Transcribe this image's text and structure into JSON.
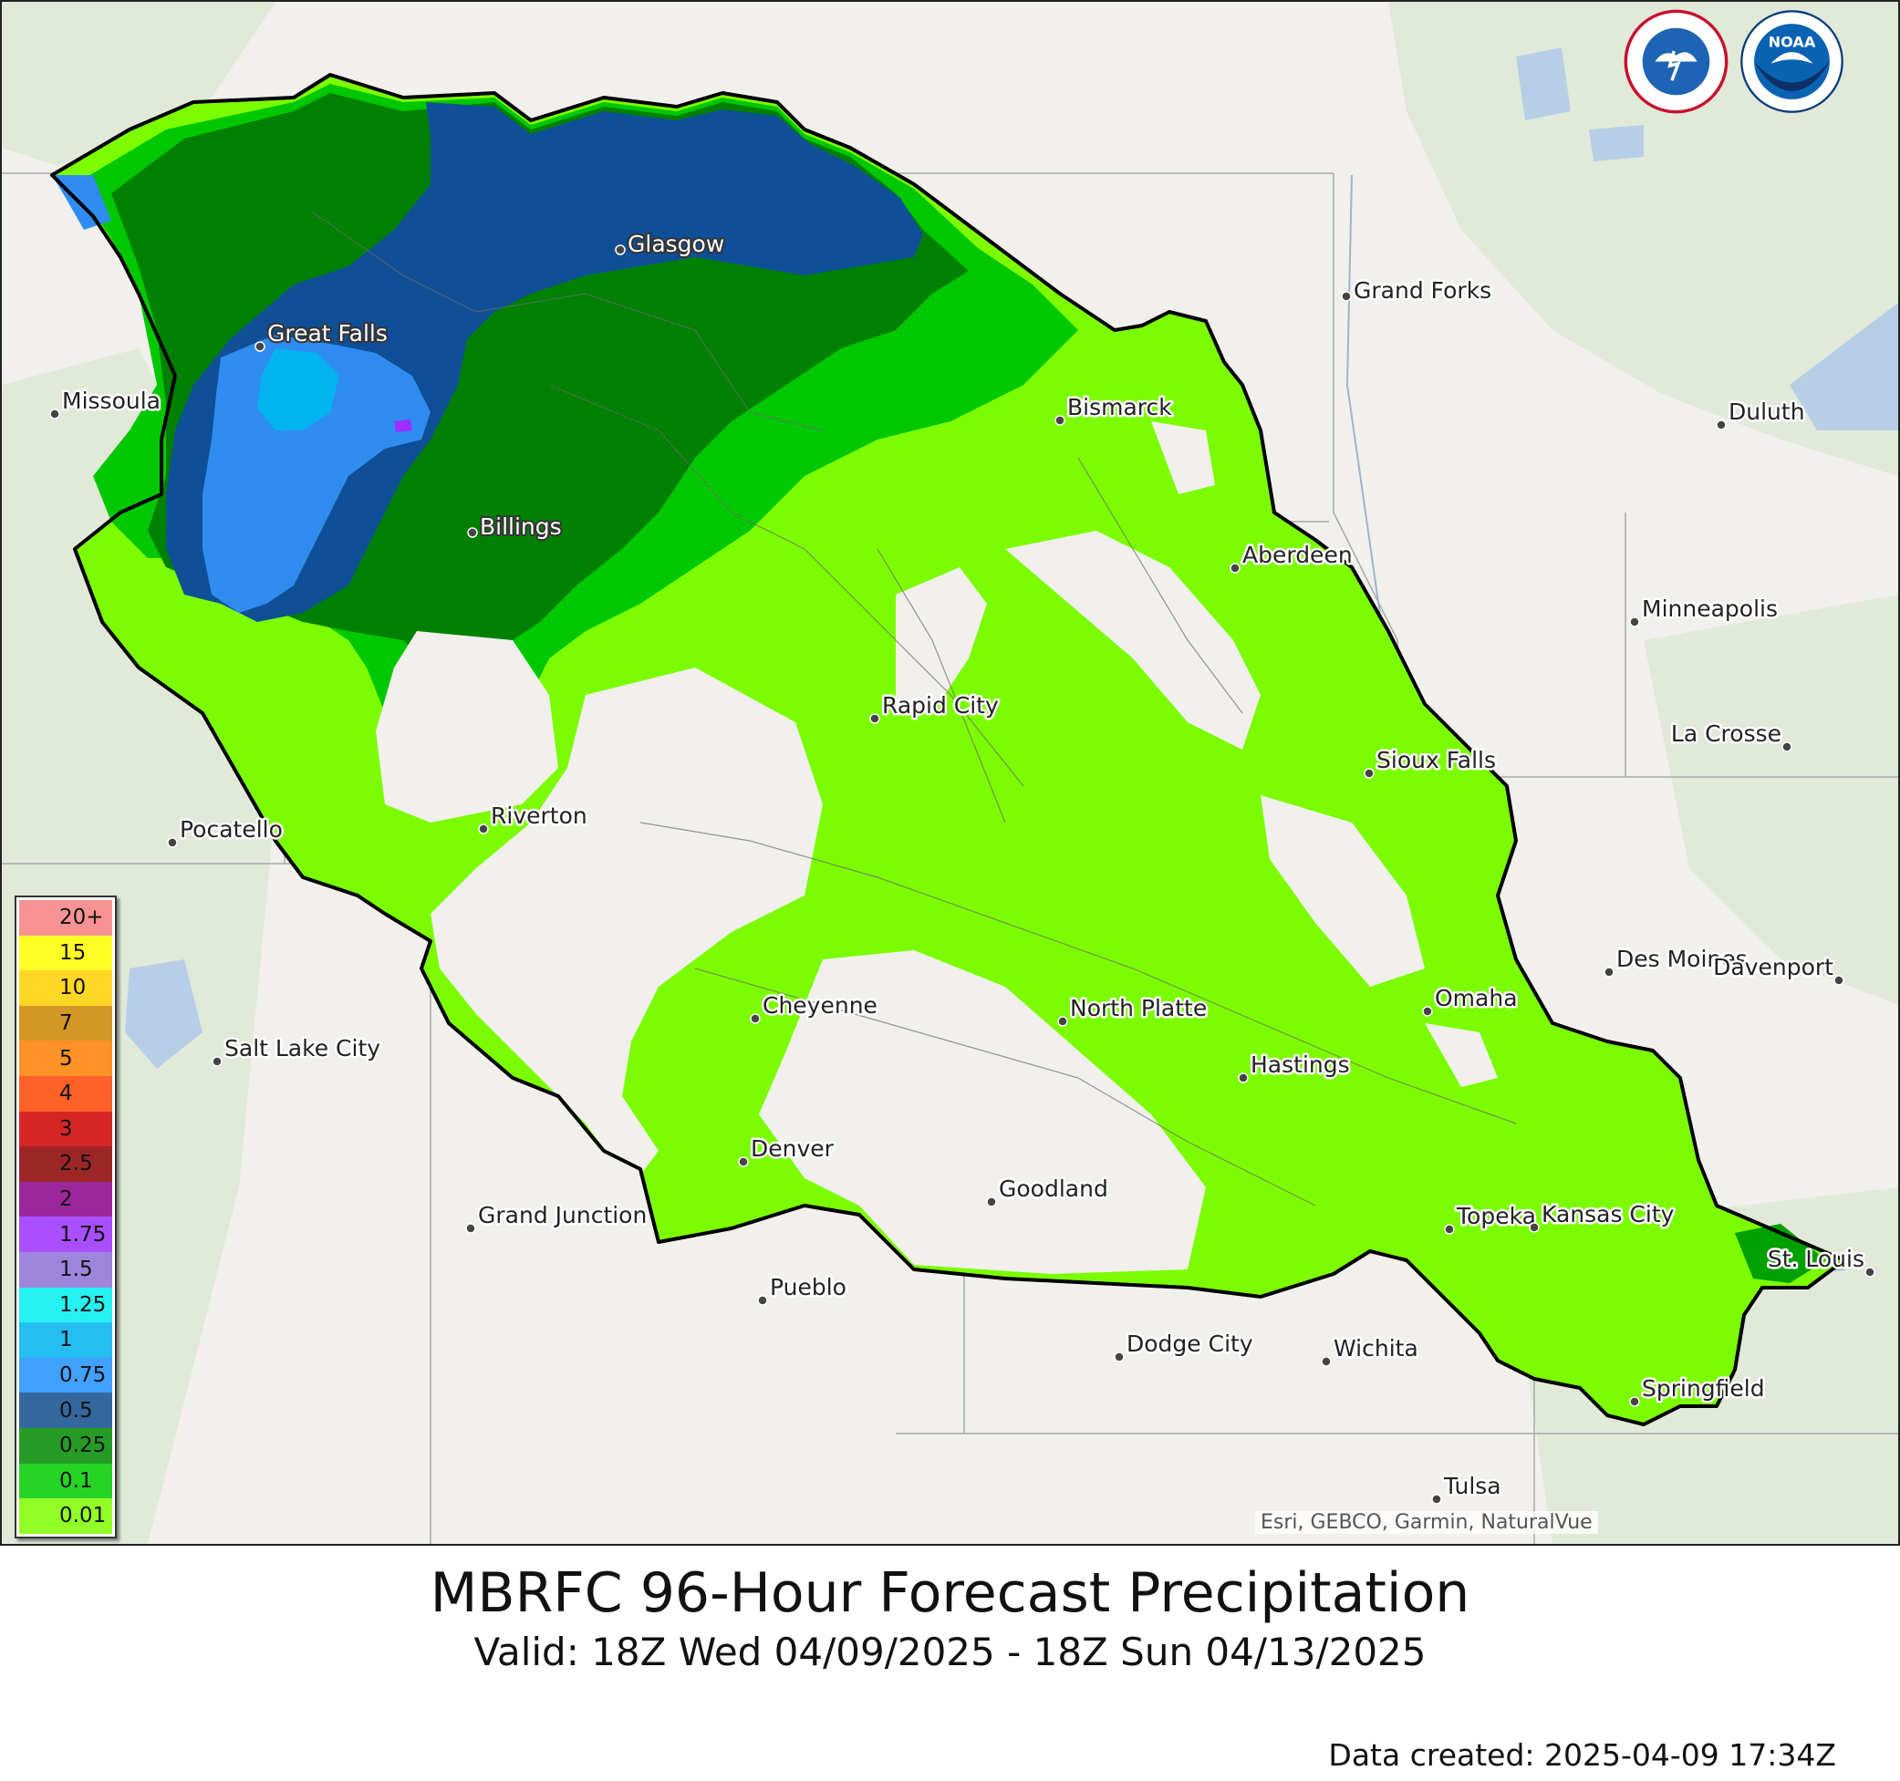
{
  "title": "MBRFC 96-Hour Forecast Precipitation",
  "subtitle": "Valid: 18Z Wed 04/09/2025 - 18Z Sun 04/13/2025",
  "created": "Data created: 2025-04-09 17:34Z",
  "attribution": "Esri, GEBCO, Garmin, NaturalVue",
  "logos": [
    {
      "name": "NATIONAL WEATHER SERVICE"
    },
    {
      "name": "NOAA"
    }
  ],
  "colors": {
    "basemap_land": "#f1f0ec",
    "forest": "#dfe8d6",
    "water": "#b7cfe6",
    "basin_outline": "#000000",
    "p_001": "#7cfc00",
    "p_01": "#00c800",
    "p_025": "#008000",
    "p_05": "#0f4f96",
    "p_075": "#2f8cf0",
    "p_1": "#00b4f0"
  },
  "legend": [
    {
      "label": "20+",
      "color": "#f78080"
    },
    {
      "label": "15",
      "color": "#ffff00"
    },
    {
      "label": "10",
      "color": "#ffd000"
    },
    {
      "label": "7",
      "color": "#cd8500"
    },
    {
      "label": "5",
      "color": "#ff7f00"
    },
    {
      "label": "4",
      "color": "#ff4500"
    },
    {
      "label": "3",
      "color": "#d00000"
    },
    {
      "label": "2.5",
      "color": "#8b0000"
    },
    {
      "label": "2",
      "color": "#8b008b"
    },
    {
      "label": "1.75",
      "color": "#9b30ff"
    },
    {
      "label": "1.5",
      "color": "#8c6fd6"
    },
    {
      "label": "1.25",
      "color": "#00eeee"
    },
    {
      "label": "1",
      "color": "#00b2ee"
    },
    {
      "label": "0.75",
      "color": "#1e90ff"
    },
    {
      "label": "0.5",
      "color": "#104e8b"
    },
    {
      "label": "0.25",
      "color": "#008b00"
    },
    {
      "label": "0.1",
      "color": "#00cd00"
    },
    {
      "label": "0.01",
      "color": "#7fff00"
    }
  ],
  "cities": [
    {
      "name": "Glasgow",
      "highlight": true
    },
    {
      "name": "Great Falls",
      "highlight": true
    },
    {
      "name": "Billings",
      "highlight": true
    },
    {
      "name": "Grand Forks",
      "highlight": false
    },
    {
      "name": "Missoula",
      "highlight": false
    },
    {
      "name": "Bismarck",
      "highlight": false
    },
    {
      "name": "Duluth",
      "highlight": false
    },
    {
      "name": "Aberdeen",
      "highlight": false
    },
    {
      "name": "Minneapolis",
      "highlight": false
    },
    {
      "name": "Rapid City",
      "highlight": false
    },
    {
      "name": "La Crosse",
      "highlight": false
    },
    {
      "name": "Sioux Falls",
      "highlight": false
    },
    {
      "name": "Riverton",
      "highlight": false
    },
    {
      "name": "Pocatello",
      "highlight": false
    },
    {
      "name": "Des Moines",
      "highlight": false
    },
    {
      "name": "Davenport",
      "highlight": false
    },
    {
      "name": "Cheyenne",
      "highlight": false
    },
    {
      "name": "North Platte",
      "highlight": false
    },
    {
      "name": "Omaha",
      "highlight": false
    },
    {
      "name": "Salt Lake City",
      "highlight": false
    },
    {
      "name": "Hastings",
      "highlight": false
    },
    {
      "name": "Denver",
      "highlight": false
    },
    {
      "name": "Goodland",
      "highlight": false
    },
    {
      "name": "Grand Junction",
      "highlight": false
    },
    {
      "name": "Topeka",
      "highlight": false
    },
    {
      "name": "Kansas City",
      "highlight": false
    },
    {
      "name": "St. Louis",
      "highlight": false
    },
    {
      "name": "Pueblo",
      "highlight": false
    },
    {
      "name": "Dodge City",
      "highlight": false
    },
    {
      "name": "Wichita",
      "highlight": false
    },
    {
      "name": "Springfield",
      "highlight": false
    },
    {
      "name": "Tulsa",
      "highlight": false
    }
  ]
}
